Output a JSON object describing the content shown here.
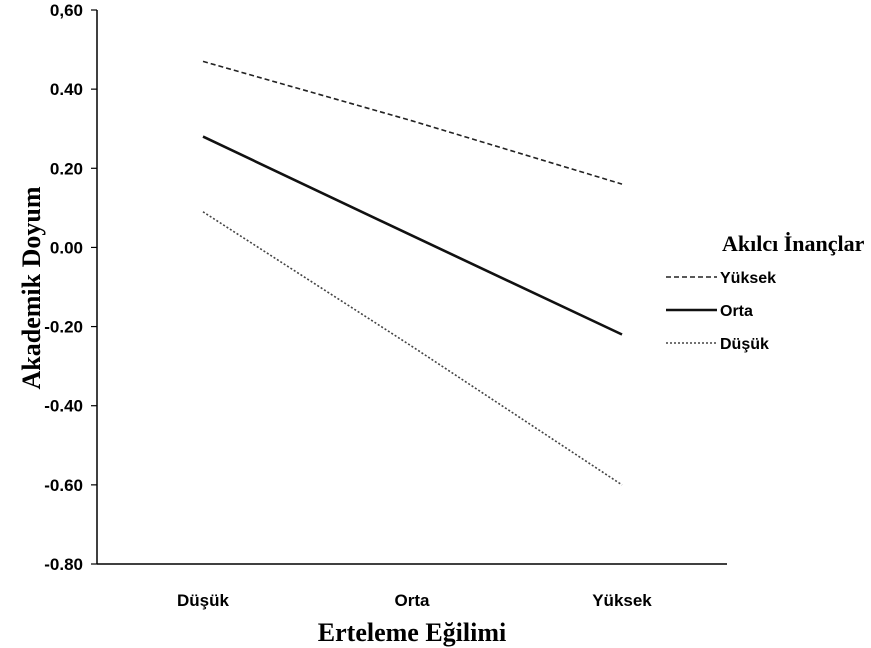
{
  "chart_data": {
    "type": "line",
    "xlabel": "Erteleme Eğilimi",
    "ylabel": "Akademik Doyum",
    "categories": [
      "Düşük",
      "Orta",
      "Yüksek"
    ],
    "ylim": [
      -0.8,
      0.6
    ],
    "yticks": [
      "0,60",
      "0.40",
      "0.20",
      "0.00",
      "-0.20",
      "-0.40",
      "-0.60",
      "-0.80"
    ],
    "ytick_values": [
      0.6,
      0.4,
      0.2,
      0.0,
      -0.2,
      -0.4,
      -0.6,
      -0.8
    ],
    "grid": false,
    "legend": {
      "title": "Akılcı İnançlar",
      "placement": "right"
    },
    "series": [
      {
        "name": "Yüksek",
        "values": [
          0.47,
          0.32,
          0.16
        ],
        "style": "dashed",
        "color": "#222222"
      },
      {
        "name": "Orta",
        "values": [
          0.28,
          0.03,
          -0.22
        ],
        "style": "solid",
        "color": "#111111"
      },
      {
        "name": "Düşük",
        "values": [
          0.09,
          -0.25,
          -0.6
        ],
        "style": "dotted",
        "color": "#444444"
      }
    ]
  }
}
